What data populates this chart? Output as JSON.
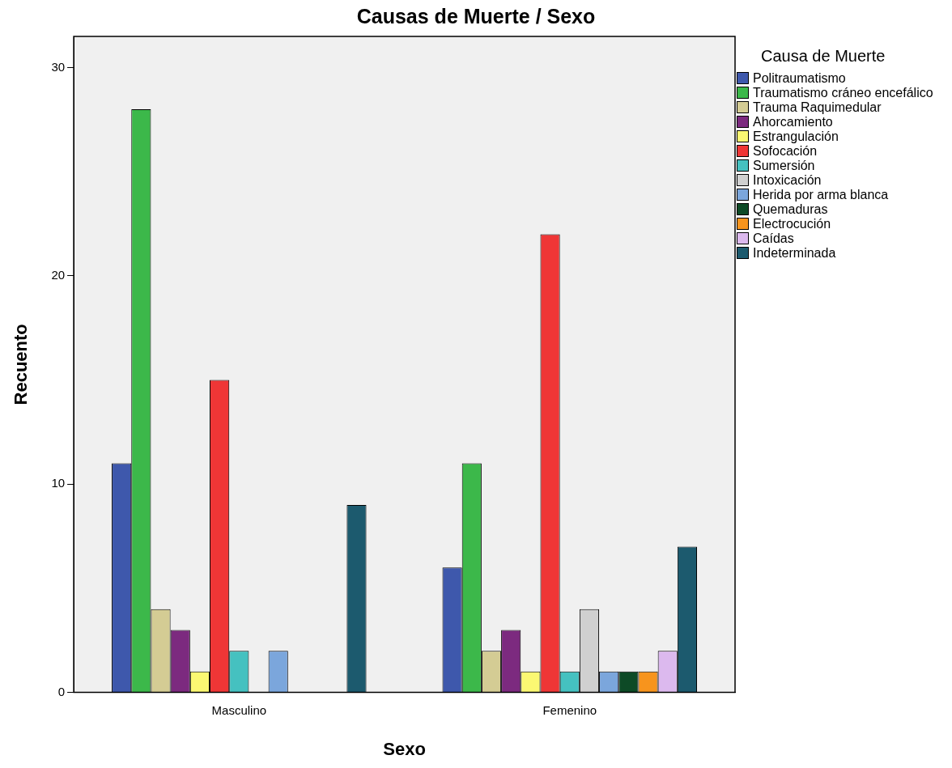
{
  "chart_data": {
    "type": "bar",
    "title": "Causas de Muerte / Sexo",
    "xlabel": "Sexo",
    "ylabel": "Recuento",
    "legend_title": "Causa de Muerte",
    "legend": "right",
    "grid": false,
    "categories": [
      "Masculino",
      "Femenino"
    ],
    "ylim": [
      0,
      31.5
    ],
    "yticks": [
      0,
      10,
      20,
      30
    ],
    "series": [
      {
        "name": "Politraumatismo",
        "color": "#3e58ac",
        "values": [
          11,
          6
        ]
      },
      {
        "name": "Traumatismo cráneo encefálico",
        "color": "#3cb84a",
        "values": [
          28,
          11
        ]
      },
      {
        "name": "Trauma Raquimedular",
        "color": "#d4cc94",
        "values": [
          4,
          2
        ]
      },
      {
        "name": "Ahorcamiento",
        "color": "#7c2a7f",
        "values": [
          3,
          3
        ]
      },
      {
        "name": "Estrangulación",
        "color": "#fbf872",
        "values": [
          1,
          1
        ]
      },
      {
        "name": "Sofocación",
        "color": "#ef3636",
        "values": [
          15,
          22
        ]
      },
      {
        "name": "Sumersión",
        "color": "#45c1c0",
        "values": [
          2,
          1
        ]
      },
      {
        "name": "Intoxicación",
        "color": "#d0d0d0",
        "values": [
          0,
          4
        ]
      },
      {
        "name": "Herida por arma blanca",
        "color": "#7ba6dc",
        "values": [
          2,
          1
        ]
      },
      {
        "name": "Quemaduras",
        "color": "#0d4a26",
        "values": [
          0,
          1
        ]
      },
      {
        "name": "Electrocución",
        "color": "#f7941d",
        "values": [
          0,
          1
        ]
      },
      {
        "name": "Caídas",
        "color": "#dcb9ee",
        "values": [
          0,
          2
        ]
      },
      {
        "name": "Indeterminada",
        "color": "#1c5a6e",
        "values": [
          9,
          7
        ]
      }
    ]
  }
}
